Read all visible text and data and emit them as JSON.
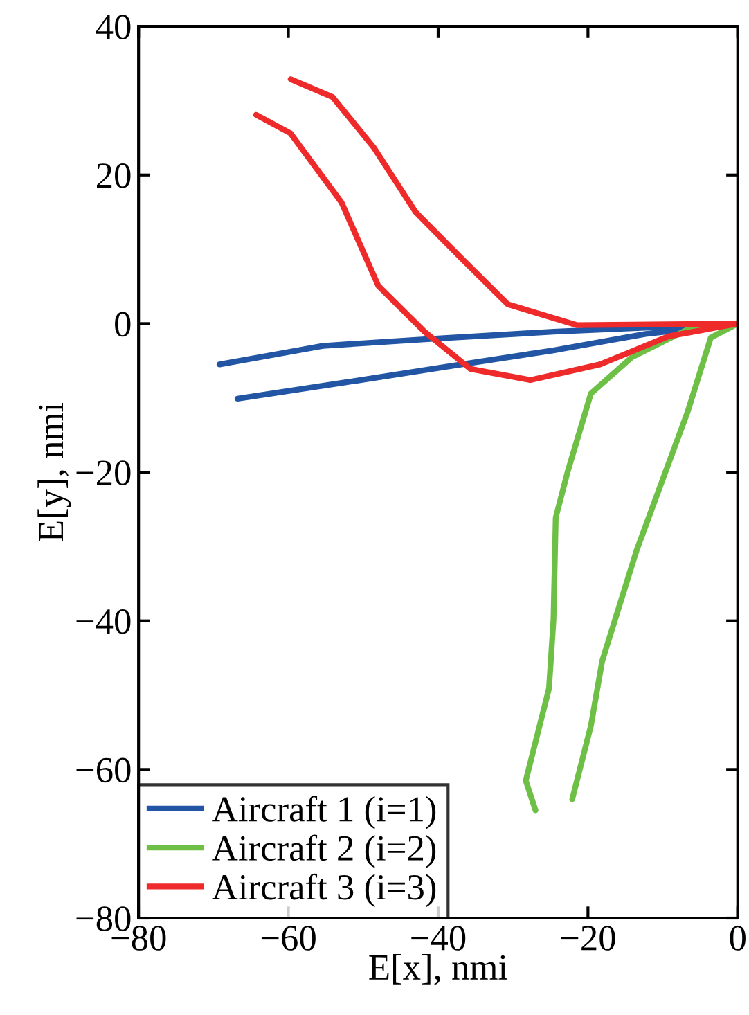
{
  "chart_data": {
    "type": "line",
    "xlabel": "E[x], nmi",
    "ylabel": "E[y], nmi",
    "xlim": [
      -80,
      0
    ],
    "ylim": [
      -80,
      40
    ],
    "xticks": [
      {
        "value": -80,
        "label": "−80"
      },
      {
        "value": -60,
        "label": "−60"
      },
      {
        "value": -40,
        "label": "−40"
      },
      {
        "value": -20,
        "label": "−20"
      },
      0
    ],
    "yticks": [
      {
        "value": -80,
        "label": "−80"
      },
      {
        "value": -60,
        "label": "−60"
      },
      {
        "value": -40,
        "label": "−40"
      },
      {
        "value": -20,
        "label": "−20"
      },
      0,
      20,
      40
    ],
    "grid": false,
    "legend": "bottom left",
    "marker": "none",
    "line_style": "solid",
    "series": [
      {
        "name": "Aircraft 1 (i=1)",
        "color": "#2255a4",
        "x": [
          -69.2,
          -55.4,
          -40.0,
          -24.6,
          0
        ],
        "values": [
          -5.5,
          -3.0,
          -2.0,
          -1.1,
          0
        ]
      },
      {
        "color": "#2255a4",
        "x": [
          -66.8,
          -52.3,
          -36.9,
          -24.6,
          -12.3,
          0
        ],
        "values": [
          -10.1,
          -7.9,
          -5.5,
          -3.6,
          -1.4,
          0
        ]
      },
      {
        "name": "Aircraft 2 (i=2)",
        "color": "#6dbf45",
        "x": [
          -27,
          -28.3,
          -25.2,
          -24.6,
          -24.3,
          -22.7,
          -19.6,
          -14.1,
          -6.1,
          -1.2,
          0
        ],
        "values": [
          -65.5,
          -61.5,
          -49.1,
          -39.8,
          -26.1,
          -19.9,
          -9.4,
          -4.5,
          -0.5,
          0,
          0
        ]
      },
      {
        "color": "#6dbf45",
        "x": [
          -22.1,
          -19.6,
          -18.1,
          -13.5,
          -6.7,
          -3.6,
          0
        ],
        "values": [
          -64.0,
          -54.1,
          -45.4,
          -30.5,
          -11.9,
          -1.9,
          0
        ]
      },
      {
        "name": "Aircraft 3 (i=3)",
        "color": "#ee2a2a",
        "x": [
          -59.7,
          -54.1,
          -48.6,
          -43.0,
          -36.9,
          -30.7,
          -21.5,
          0
        ],
        "values": [
          32.9,
          30.5,
          23.7,
          15.0,
          8.8,
          2.6,
          -0.2,
          0
        ]
      },
      {
        "color": "#ee2a2a",
        "x": [
          -64.3,
          -59.7,
          -52.9,
          -48.0,
          -41.8,
          -35.7,
          -27.7,
          -18.4,
          -9.2,
          0
        ],
        "values": [
          28.1,
          25.6,
          16.3,
          5.1,
          -1.1,
          -6.1,
          -7.6,
          -5.5,
          -1.7,
          0
        ]
      }
    ]
  }
}
